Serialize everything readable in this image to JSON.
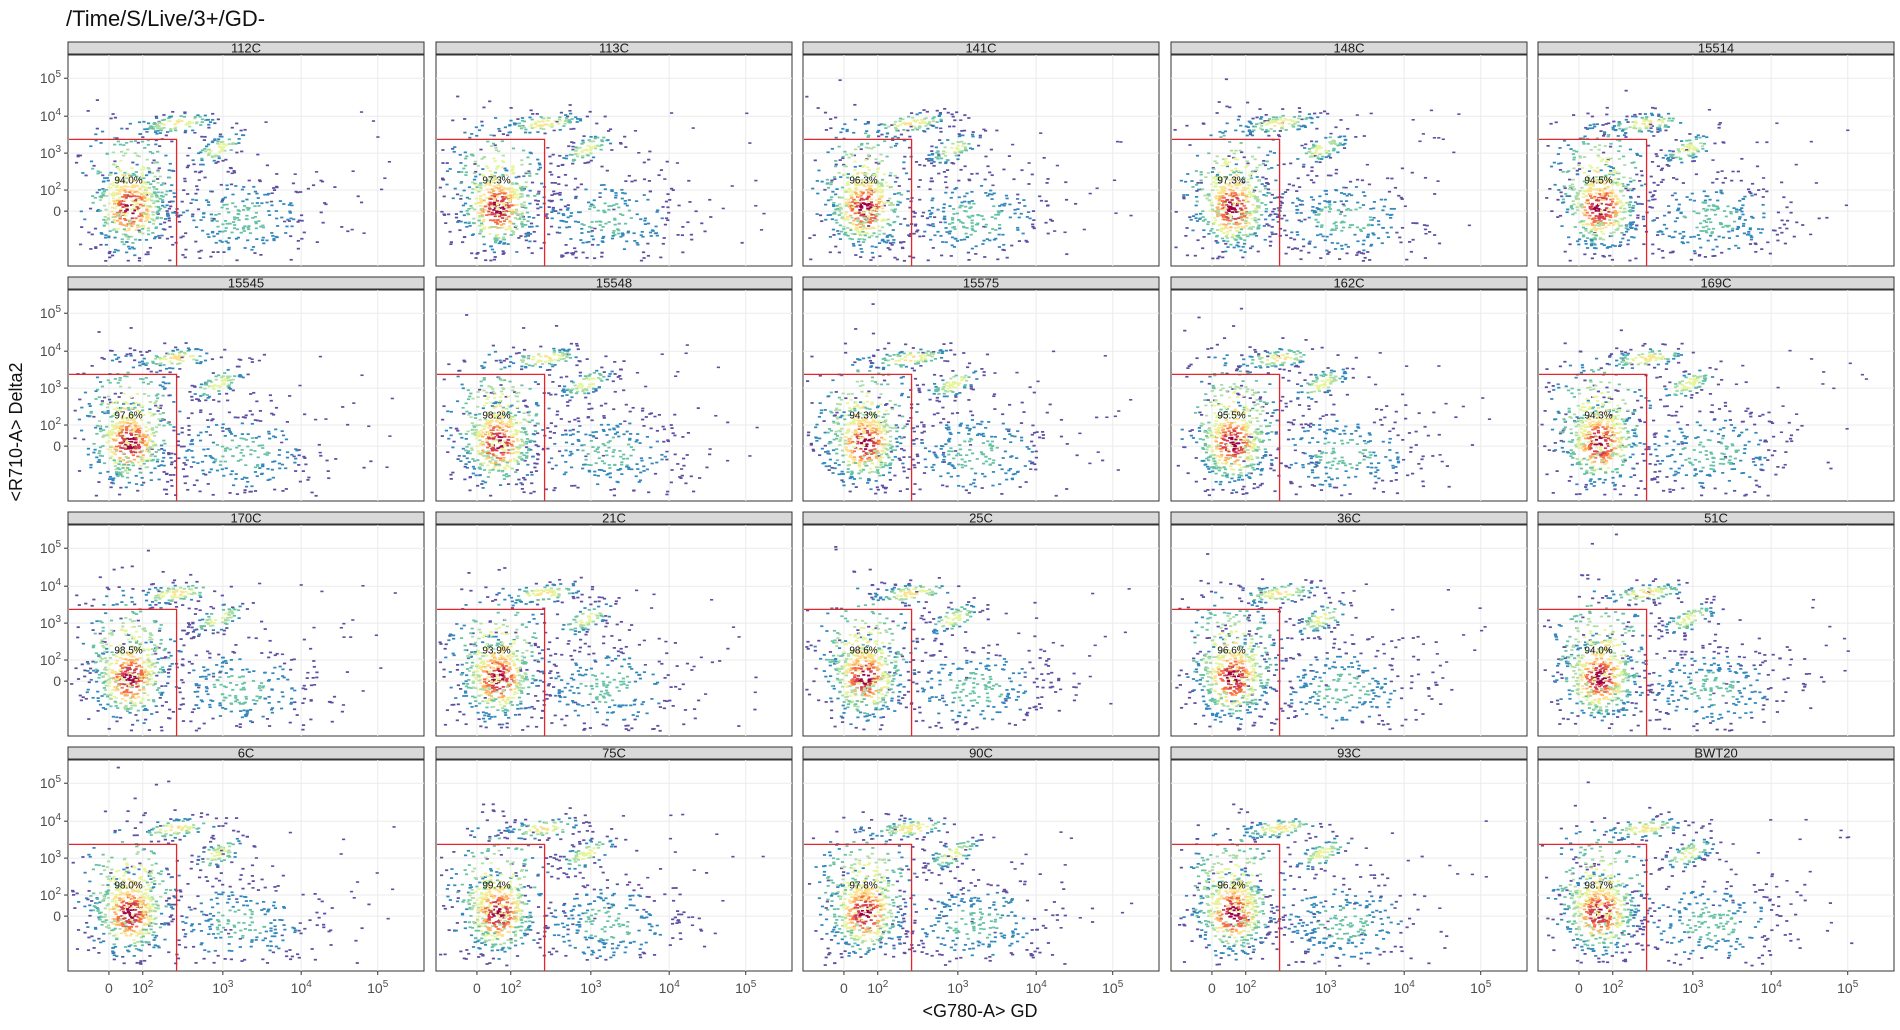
{
  "title": "/Time/S/Live/3+/GD-",
  "chart_data": {
    "type": "heatmap",
    "subtype": "faceted flow-cytometry density (hexbin) plots with rectangular gate",
    "xlabel": "<G780-A> GD",
    "ylabel": "<R710-A> Delta2",
    "x_ticks": [
      "0",
      "10^2",
      "10^3",
      "10^4",
      "10^5"
    ],
    "y_ticks": [
      "0",
      "10^2",
      "10^3",
      "10^4",
      "10^5"
    ],
    "grid": "on",
    "colorscale": [
      "#5e4fa2",
      "#3288bd",
      "#66c2a5",
      "#abdda4",
      "#e6f598",
      "#fee08b",
      "#fdae61",
      "#f46d43",
      "#d53e4f",
      "#9e0142"
    ],
    "gate_color": "#e8242b",
    "panels": [
      {
        "name": "112C",
        "gate_pct": "94.0%"
      },
      {
        "name": "113C",
        "gate_pct": "97.3%"
      },
      {
        "name": "141C",
        "gate_pct": "96.3%"
      },
      {
        "name": "148C",
        "gate_pct": "97.3%"
      },
      {
        "name": "15514",
        "gate_pct": "94.5%"
      },
      {
        "name": "15545",
        "gate_pct": "97.6%"
      },
      {
        "name": "15548",
        "gate_pct": "98.2%"
      },
      {
        "name": "15575",
        "gate_pct": "94.3%"
      },
      {
        "name": "162C",
        "gate_pct": "95.5%"
      },
      {
        "name": "169C",
        "gate_pct": "94.3%"
      },
      {
        "name": "170C",
        "gate_pct": "98.5%"
      },
      {
        "name": "21C",
        "gate_pct": "93.9%"
      },
      {
        "name": "25C",
        "gate_pct": "98.6%"
      },
      {
        "name": "36C",
        "gate_pct": "96.6%"
      },
      {
        "name": "51C",
        "gate_pct": "94.0%"
      },
      {
        "name": "6C",
        "gate_pct": "98.0%"
      },
      {
        "name": "75C",
        "gate_pct": "99.4%"
      },
      {
        "name": "90C",
        "gate_pct": "97.8%"
      },
      {
        "name": "93C",
        "gate_pct": "96.2%"
      },
      {
        "name": "BWT20",
        "gate_pct": "98.7%"
      }
    ]
  }
}
